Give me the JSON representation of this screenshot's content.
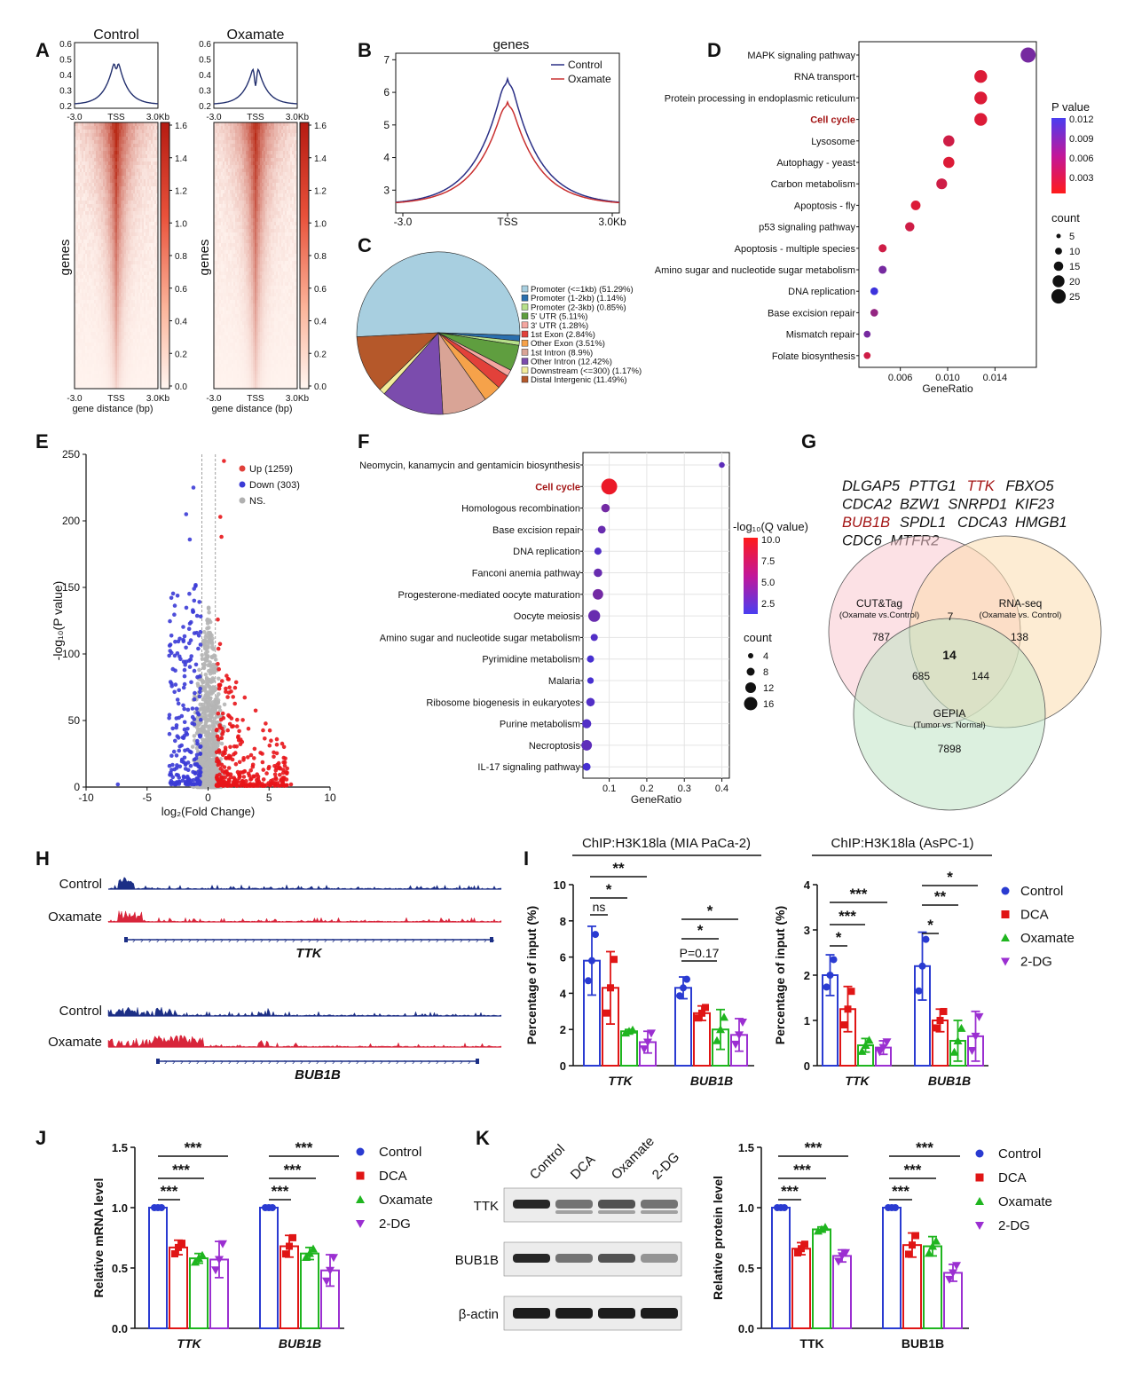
{
  "panels": {
    "A": "A",
    "B": "B",
    "C": "C",
    "D": "D",
    "E": "E",
    "F": "F",
    "G": "G",
    "H": "H",
    "I": "I",
    "J": "J",
    "K": "K"
  },
  "colors": {
    "blue": "#2a3bd1",
    "red": "#e01515",
    "green": "#1fb51f",
    "purple": "#9b2fd1",
    "heat_hi": "#c71d12",
    "heat_lo": "#fff5f0",
    "track_blue": "#1c2f86",
    "track_red": "#d8253a"
  },
  "chart_data": [
    {
      "id": "A",
      "type": "heatmap",
      "panel_titles": [
        "Control",
        "Oxamate"
      ],
      "profile_yticks": [
        "0.6",
        "0.5",
        "0.4",
        "0.3",
        "0.2"
      ],
      "profile_xticks": [
        "-3.0",
        "TSS",
        "3.0Kb"
      ],
      "ylabel": "genes",
      "xlabel": "gene distance (bp)",
      "xticks": [
        "-3.0",
        "TSS",
        "3.0Kb"
      ],
      "colorbar_ticks": [
        "1.6",
        "1.4",
        "1.2",
        "1.0",
        "0.8",
        "0.6",
        "0.4",
        "0.2",
        "0.0"
      ],
      "colorbar_range": [
        0.0,
        1.6
      ]
    },
    {
      "id": "B",
      "type": "line",
      "title": "genes",
      "xticks": [
        "-3.0",
        "TSS",
        "3.0Kb"
      ],
      "yticks": [
        3,
        4,
        5,
        6,
        7
      ],
      "ylim": [
        2.3,
        7.2
      ],
      "legend_position": "top-right",
      "series": [
        {
          "name": "Control",
          "color": "#2a2f86",
          "peak": 6.9
        },
        {
          "name": "Oxamate",
          "color": "#c93030",
          "peak": 6.1
        }
      ]
    },
    {
      "id": "C",
      "type": "pie",
      "slices": [
        {
          "label": "Promoter (<=1kb) (51.29%)",
          "value": 51.29,
          "color": "#a8cfe0"
        },
        {
          "label": "Promoter (1-2kb) (1.14%)",
          "value": 1.14,
          "color": "#2a6fae"
        },
        {
          "label": "Promoter (2-3kb) (0.85%)",
          "value": 0.85,
          "color": "#b7e08a"
        },
        {
          "label": "5' UTR (5.11%)",
          "value": 5.11,
          "color": "#5f9e3f"
        },
        {
          "label": "3' UTR (1.28%)",
          "value": 1.28,
          "color": "#f4a6a0"
        },
        {
          "label": "1st Exon (2.84%)",
          "value": 2.84,
          "color": "#e2413a"
        },
        {
          "label": "Other Exon (3.51%)",
          "value": 3.51,
          "color": "#f6a24a"
        },
        {
          "label": "1st Intron (8.9%)",
          "value": 8.9,
          "color": "#d9a496"
        },
        {
          "label": "Other Intron (12.42%)",
          "value": 12.42,
          "color": "#7b4cad"
        },
        {
          "label": "Downstream (<=300) (1.17%)",
          "value": 1.17,
          "color": "#f2ec9a"
        },
        {
          "label": "Distal Intergenic (11.49%)",
          "value": 11.49,
          "color": "#b5582a"
        }
      ]
    },
    {
      "id": "D",
      "type": "scatter",
      "xlabel": "GeneRatio",
      "xticks": [
        0.006,
        0.01,
        0.014
      ],
      "xlim": [
        0.0025,
        0.0175
      ],
      "color_title": "P value",
      "color_ticks": [
        "0.012",
        "0.009",
        "0.006",
        "0.003"
      ],
      "size_title": "count",
      "size_ticks": [
        "5",
        "10",
        "15",
        "20",
        "25"
      ],
      "highlight": "Cell cycle",
      "points": [
        {
          "term": "MAPK signaling pathway",
          "x": 0.0168,
          "count": 25,
          "p": 0.008
        },
        {
          "term": "RNA transport",
          "x": 0.0128,
          "count": 19,
          "p": 0.001
        },
        {
          "term": "Protein processing in endoplasmic reticulum",
          "x": 0.0128,
          "count": 19,
          "p": 0.001
        },
        {
          "term": "Cell cycle",
          "x": 0.0128,
          "count": 19,
          "p": 0.001
        },
        {
          "term": "Lysosome",
          "x": 0.0101,
          "count": 15,
          "p": 0.002
        },
        {
          "term": "Autophagy - yeast",
          "x": 0.0101,
          "count": 15,
          "p": 0.001
        },
        {
          "term": "Carbon metabolism",
          "x": 0.0095,
          "count": 14,
          "p": 0.002
        },
        {
          "term": "Apoptosis - fly",
          "x": 0.0073,
          "count": 11,
          "p": 0.001
        },
        {
          "term": "p53 signaling pathway",
          "x": 0.0068,
          "count": 10,
          "p": 0.002
        },
        {
          "term": "Apoptosis - multiple species",
          "x": 0.0045,
          "count": 7,
          "p": 0.002
        },
        {
          "term": "Amino sugar and nucleotide sugar metabolism",
          "x": 0.0045,
          "count": 7,
          "p": 0.008
        },
        {
          "term": "DNA replication",
          "x": 0.0038,
          "count": 6,
          "p": 0.012
        },
        {
          "term": "Base excision repair",
          "x": 0.0038,
          "count": 6,
          "p": 0.006
        },
        {
          "term": "Mismatch repair",
          "x": 0.0032,
          "count": 4,
          "p": 0.008
        },
        {
          "term": "Folate biosynthesis",
          "x": 0.0032,
          "count": 4,
          "p": 0.002
        }
      ]
    },
    {
      "id": "E",
      "type": "scatter",
      "xlabel": "log₂(Fold Change)",
      "ylabel": "-log₁₀(P value)",
      "xlim": [
        -10,
        10
      ],
      "ylim": [
        0,
        250
      ],
      "xticks": [
        -10,
        -5,
        0,
        5,
        10
      ],
      "yticks": [
        0,
        50,
        100,
        150,
        200,
        250
      ],
      "legend_position": "top-right",
      "series": [
        {
          "name": "Up (1259)",
          "color": "#e0403a"
        },
        {
          "name": "Down (303)",
          "color": "#3b3bd6"
        },
        {
          "name": "NS.",
          "color": "#b0b0b0"
        }
      ]
    },
    {
      "id": "F",
      "type": "scatter",
      "xlabel": "GeneRatio",
      "xticks": [
        0.1,
        0.2,
        0.3,
        0.4
      ],
      "xlim": [
        0.03,
        0.42
      ],
      "color_title": "-log₁₀(Q value)",
      "color_ticks": [
        "10.0",
        "7.5",
        "5.0",
        "2.5"
      ],
      "size_title": "count",
      "size_ticks": [
        "4",
        "8",
        "12",
        "16"
      ],
      "highlight": "Cell cycle",
      "points": [
        {
          "term": "Neomycin, kanamycin and gentamicin biosynthesis",
          "x": 0.4,
          "count": 2,
          "q": 4.0
        },
        {
          "term": "Cell cycle",
          "x": 0.1,
          "count": 17,
          "q": 10.5
        },
        {
          "term": "Homologous recombination",
          "x": 0.09,
          "count": 6,
          "q": 5.0
        },
        {
          "term": "Base excision repair",
          "x": 0.08,
          "count": 5,
          "q": 4.5
        },
        {
          "term": "DNA replication",
          "x": 0.07,
          "count": 4,
          "q": 3.5
        },
        {
          "term": "Fanconi anemia pathway",
          "x": 0.07,
          "count": 6,
          "q": 4.5
        },
        {
          "term": "Progesterone-mediated oocyte maturation",
          "x": 0.07,
          "count": 9,
          "q": 5.0
        },
        {
          "term": "Oocyte meiosis",
          "x": 0.06,
          "count": 11,
          "q": 4.5
        },
        {
          "term": "Amino sugar and nucleotide sugar metabolism",
          "x": 0.06,
          "count": 4,
          "q": 3.5
        },
        {
          "term": "Pyrimidine metabolism",
          "x": 0.05,
          "count": 4,
          "q": 3.0
        },
        {
          "term": "Malaria",
          "x": 0.05,
          "count": 3,
          "q": 3.0
        },
        {
          "term": "Ribosome biogenesis in eukaryotes",
          "x": 0.05,
          "count": 6,
          "q": 3.5
        },
        {
          "term": "Purine metabolism",
          "x": 0.04,
          "count": 7,
          "q": 3.5
        },
        {
          "term": "Necroptosis",
          "x": 0.04,
          "count": 9,
          "q": 4.0
        },
        {
          "term": "IL-17 signaling pathway",
          "x": 0.04,
          "count": 5,
          "q": 3.0
        }
      ]
    },
    {
      "id": "I",
      "type": "bar",
      "ylabel": "Percentage of input (%)",
      "categories": [
        "TTK",
        "BUB1B"
      ],
      "legend": [
        "Control",
        "DCA",
        "Oxamate",
        "2-DG"
      ],
      "subplots": [
        {
          "title": "ChIP:H3K18la (MIA PaCa-2)",
          "ylim": [
            0,
            10
          ],
          "yticks": [
            0,
            2,
            4,
            6,
            8,
            10
          ],
          "series": [
            {
              "name": "Control",
              "values": [
                5.8,
                4.3
              ],
              "err": [
                1.9,
                0.6
              ]
            },
            {
              "name": "DCA",
              "values": [
                4.3,
                2.9
              ],
              "err": [
                2.0,
                0.4
              ]
            },
            {
              "name": "Oxamate",
              "values": [
                1.9,
                2.0
              ],
              "err": [
                0.1,
                1.1
              ]
            },
            {
              "name": "2-DG",
              "values": [
                1.3,
                1.7
              ],
              "err": [
                0.6,
                0.9
              ]
            }
          ],
          "annotations": [
            "ns",
            "*",
            "**",
            "P=0.17",
            "*",
            "*"
          ]
        },
        {
          "title": "ChIP:H3K18la (AsPC-1)",
          "ylim": [
            0,
            4
          ],
          "yticks": [
            0,
            1,
            2,
            3,
            4
          ],
          "series": [
            {
              "name": "Control",
              "values": [
                2.0,
                2.2
              ],
              "err": [
                0.45,
                0.75
              ]
            },
            {
              "name": "DCA",
              "values": [
                1.25,
                1.0
              ],
              "err": [
                0.5,
                0.25
              ]
            },
            {
              "name": "Oxamate",
              "values": [
                0.45,
                0.55
              ],
              "err": [
                0.15,
                0.45
              ]
            },
            {
              "name": "2-DG",
              "values": [
                0.4,
                0.65
              ],
              "err": [
                0.15,
                0.55
              ]
            }
          ],
          "annotations": [
            "*",
            "***",
            "***",
            "*",
            "**",
            "*"
          ]
        }
      ]
    },
    {
      "id": "J",
      "type": "bar",
      "ylabel": "Relative mRNA level",
      "categories": [
        "TTK",
        "BUB1B"
      ],
      "ylim": [
        0,
        1.5
      ],
      "yticks": [
        0.0,
        0.5,
        1.0,
        1.5
      ],
      "series": [
        {
          "name": "Control",
          "values": [
            1.0,
            1.0
          ],
          "err": [
            0.0,
            0.0
          ]
        },
        {
          "name": "DCA",
          "values": [
            0.67,
            0.68
          ],
          "err": [
            0.06,
            0.09
          ]
        },
        {
          "name": "Oxamate",
          "values": [
            0.58,
            0.62
          ],
          "err": [
            0.04,
            0.05
          ]
        },
        {
          "name": "2-DG",
          "values": [
            0.57,
            0.48
          ],
          "err": [
            0.15,
            0.13
          ]
        }
      ],
      "annotations": [
        "***",
        "***",
        "***",
        "***",
        "***",
        "***"
      ]
    },
    {
      "id": "K",
      "type": "bar",
      "ylabel": "Relative protein level",
      "categories": [
        "TTK",
        "BUB1B"
      ],
      "ylim": [
        0,
        1.5
      ],
      "yticks": [
        0.0,
        0.5,
        1.0,
        1.5
      ],
      "series": [
        {
          "name": "Control",
          "values": [
            1.0,
            1.0
          ],
          "err": [
            0.0,
            0.0
          ]
        },
        {
          "name": "DCA",
          "values": [
            0.66,
            0.69
          ],
          "err": [
            0.05,
            0.1
          ]
        },
        {
          "name": "Oxamate",
          "values": [
            0.82,
            0.68
          ],
          "err": [
            0.02,
            0.08
          ]
        },
        {
          "name": "2-DG",
          "values": [
            0.6,
            0.46
          ],
          "err": [
            0.05,
            0.07
          ]
        }
      ],
      "annotations": [
        "***",
        "***",
        "***",
        "***",
        "***",
        "***"
      ]
    }
  ],
  "venn": {
    "genes": [
      "DLGAP5",
      "PTTG1",
      "TTK",
      "FBXO5",
      "CDCA2",
      "BZW1",
      "SNRPD1",
      "KIF23",
      "BUB1B",
      "SPDL1",
      "CDCA3",
      "HMGB1",
      "CDC6",
      "MTFR2"
    ],
    "highlight": [
      "TTK",
      "BUB1B"
    ],
    "sets": [
      {
        "name": "CUT&Tag",
        "sub": "(Oxamate vs.Control)",
        "color": "#f9c9cf"
      },
      {
        "name": "RNA-seq",
        "sub": "(Oxamate vs. Control)",
        "color": "#fbdcae"
      },
      {
        "name": "GEPIA",
        "sub": "(Tumor vs. Normal)",
        "color": "#bfe3c4"
      }
    ],
    "counts": {
      "a": "787",
      "b": "138",
      "c": "7898",
      "ab": "7",
      "ac": "685",
      "bc": "144",
      "abc": "14"
    }
  },
  "tracks": {
    "labels": [
      "Control",
      "Oxamate",
      "Control",
      "Oxamate"
    ],
    "genes": [
      "TTK",
      "BUB1B"
    ]
  },
  "western": {
    "lanes": [
      "Control",
      "DCA",
      "Oxamate",
      "2-DG"
    ],
    "rows": [
      "TTK",
      "BUB1B",
      "β-actin"
    ]
  }
}
